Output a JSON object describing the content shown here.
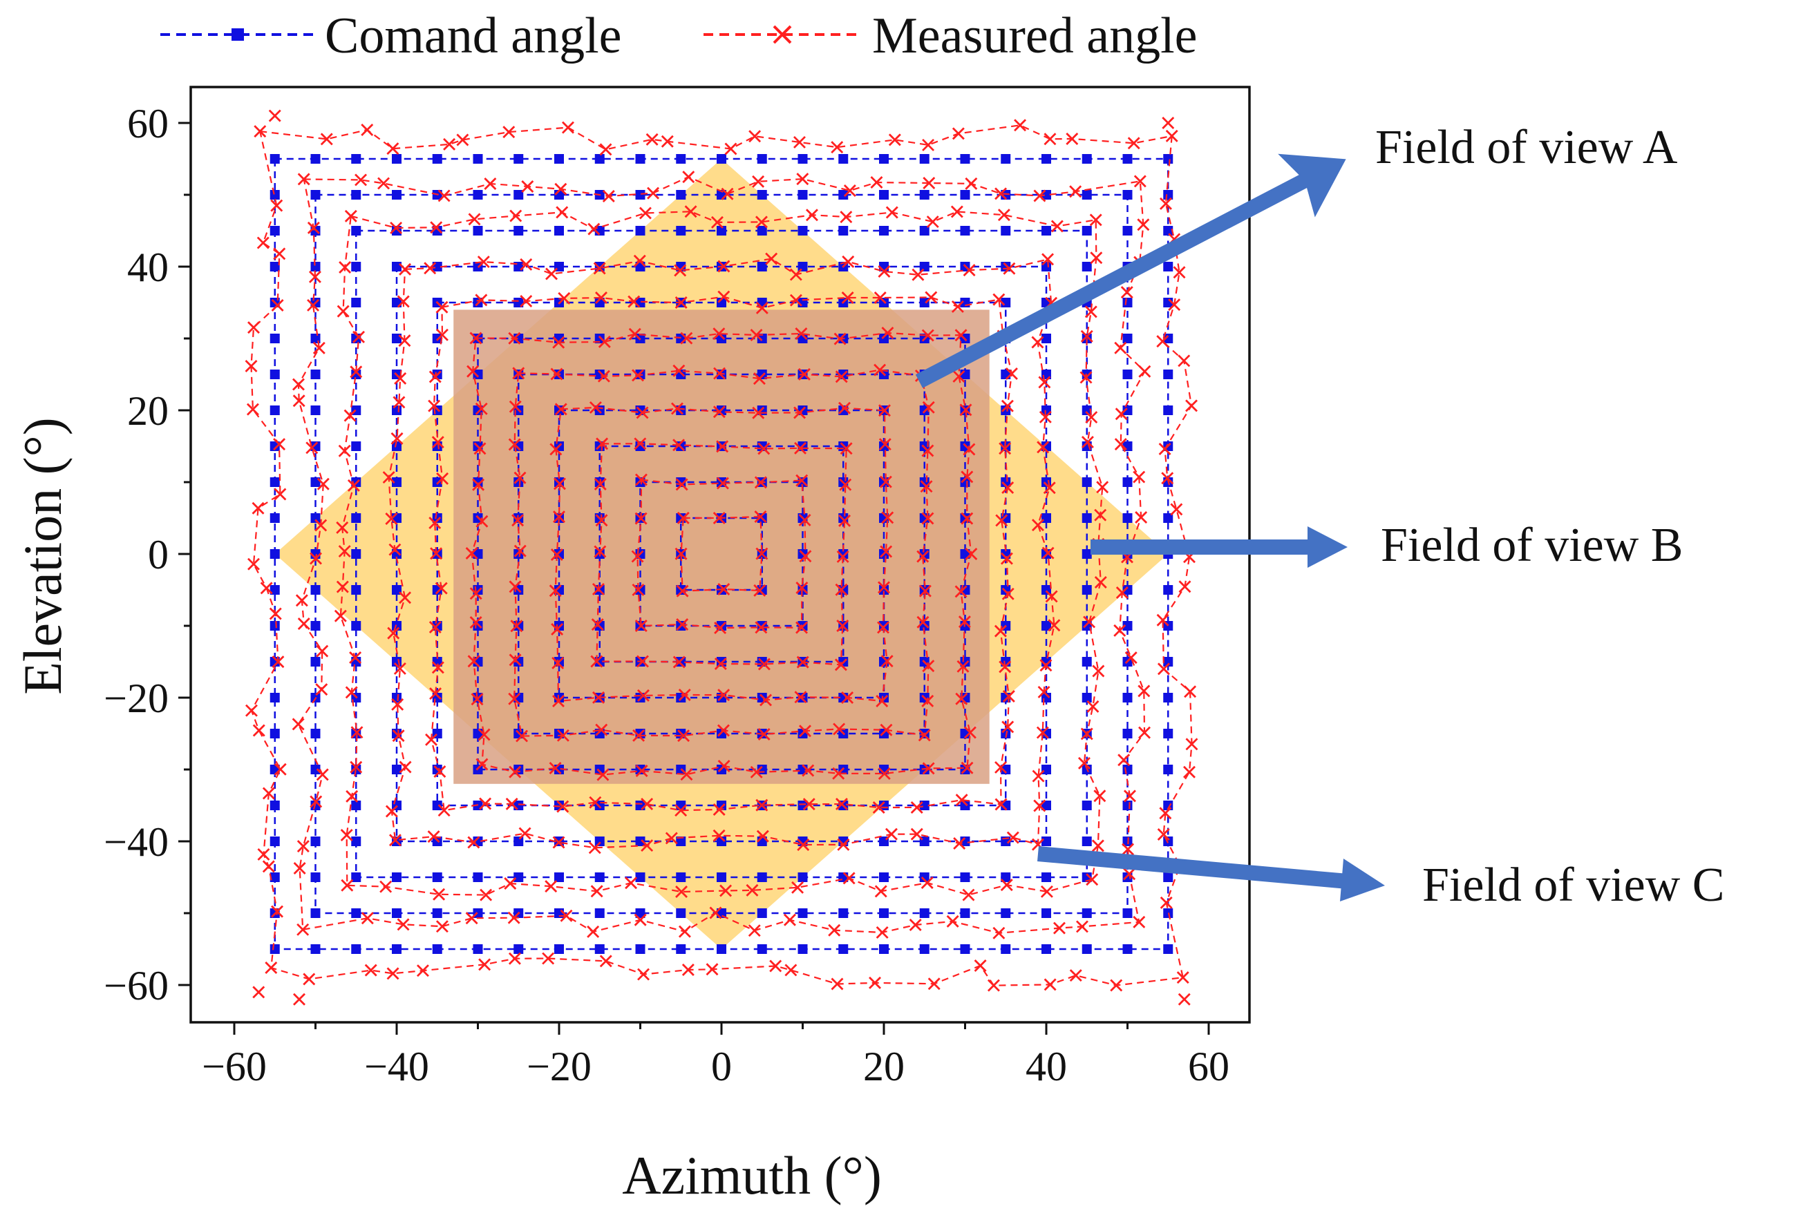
{
  "chart_data": {
    "type": "line",
    "title": "",
    "xlabel": "Azimuth (°)",
    "ylabel": "Elevation  (°)",
    "xlim": [
      -66,
      66
    ],
    "ylim": [
      -65,
      66
    ],
    "xticks": [
      -60,
      -40,
      -20,
      0,
      20,
      40,
      60
    ],
    "yticks": [
      60,
      40,
      20,
      0,
      -20,
      -40,
      -60
    ],
    "xtick_labels": [
      "−60",
      "−40",
      "−20",
      "0",
      "20",
      "40",
      "60"
    ],
    "ytick_labels": [
      "60",
      "40",
      "20",
      "0",
      "−20",
      "−40",
      "−60"
    ],
    "grid": false,
    "legend": {
      "placement": "top",
      "entries": [
        {
          "name": "Comand angle",
          "color": "#1010e0",
          "marker": "square",
          "line": "dashed"
        },
        {
          "name": "Measured angle",
          "color": "#ff2020",
          "marker": "x",
          "line": "dashed"
        }
      ]
    },
    "series": [
      {
        "name": "Comand angle",
        "color": "#1010e0",
        "description_of_values": "concentric square raster loops, half-widths 55, 50, 45, 40, 35, 30, 25, 20, 15, 10, 5 degrees; grid points every 5 degrees along each loop",
        "loop_half_widths": [
          55,
          50,
          45,
          40,
          35,
          30,
          25,
          20,
          15,
          10,
          5
        ],
        "step": 5
      },
      {
        "name": "Measured angle",
        "color": "#ff2020",
        "description_of_values": "measured points following the same square loops, with growing deviation toward the outer loops; corner points of outer loop near (-55, 61), (55, 60), (-57, -61), (57, -62)",
        "corner_points": [
          [
            -55,
            61
          ],
          [
            55,
            60
          ],
          [
            -57,
            -61
          ],
          [
            57,
            -62
          ],
          [
            -52,
            -62
          ]
        ]
      }
    ],
    "regions": [
      {
        "name": "Field of view A",
        "shape": "rectangle",
        "x": [
          -33,
          33
        ],
        "y": [
          -32,
          34
        ],
        "color": "#d9a184"
      },
      {
        "name": "Field of view B",
        "shape": "diamond",
        "center": [
          0,
          0
        ],
        "half_diagonal": 55,
        "color": "#ffd677"
      },
      {
        "name": "Field of view C",
        "shape": "square",
        "x": [
          -55,
          55
        ],
        "y": [
          -55,
          55
        ]
      }
    ],
    "annotations": [
      {
        "text": "Field of view A",
        "points_to": [
          24,
          24
        ]
      },
      {
        "text": "Field of view B",
        "points_to": [
          45,
          1
        ]
      },
      {
        "text": "Field of view C",
        "points_to": [
          40,
          -41
        ]
      }
    ]
  }
}
